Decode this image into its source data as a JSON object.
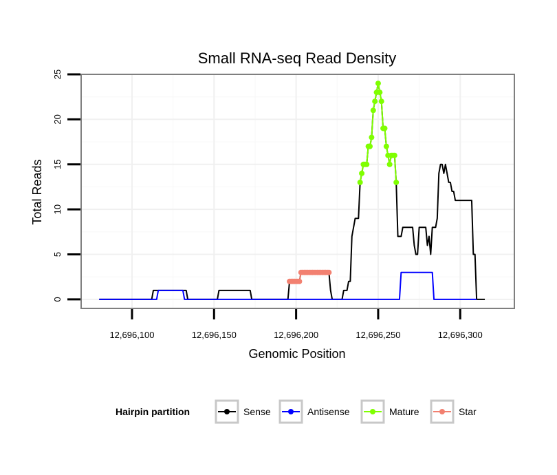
{
  "chart_data": {
    "type": "line",
    "title": "Small RNA-seq Read Density",
    "xlabel": "Genomic Position",
    "ylabel": "Total Reads",
    "xlim": [
      12696069,
      12696333
    ],
    "ylim": [
      -1,
      25
    ],
    "x_ticks": [
      12696100,
      12696150,
      12696200,
      12696250,
      12696300
    ],
    "x_tick_labels": [
      "12,696,100",
      "12,696,150",
      "12,696,200",
      "12,696,250",
      "12,696,300"
    ],
    "y_ticks": [
      0,
      5,
      10,
      15,
      20,
      25
    ],
    "y_tick_labels": [
      "0",
      "5",
      "10",
      "15",
      "20",
      "25"
    ],
    "legend": {
      "title": "Hairpin partition",
      "position": "bottom",
      "entries": [
        "Sense",
        "Antisense",
        "Mature",
        "Star"
      ]
    },
    "series": [
      {
        "name": "Sense",
        "color": "#000000",
        "style": "line",
        "points": [
          [
            12696080,
            0
          ],
          [
            12696112,
            0
          ],
          [
            12696113,
            1
          ],
          [
            12696133,
            1
          ],
          [
            12696134,
            0
          ],
          [
            12696152,
            0
          ],
          [
            12696153,
            1
          ],
          [
            12696172,
            1
          ],
          [
            12696173,
            0
          ],
          [
            12696195,
            0
          ],
          [
            12696196,
            2
          ],
          [
            12696202,
            2
          ],
          [
            12696203,
            3
          ],
          [
            12696220,
            3
          ],
          [
            12696221,
            1
          ],
          [
            12696222,
            0
          ],
          [
            12696228,
            0
          ],
          [
            12696229,
            1
          ],
          [
            12696231,
            1
          ],
          [
            12696232,
            2
          ],
          [
            12696233,
            2
          ],
          [
            12696234,
            7
          ],
          [
            12696235,
            8
          ],
          [
            12696236,
            9
          ],
          [
            12696238,
            9
          ],
          [
            12696239,
            13
          ],
          [
            12696240,
            14
          ],
          [
            12696241,
            15
          ],
          [
            12696243,
            15
          ],
          [
            12696244,
            17
          ],
          [
            12696245,
            17
          ],
          [
            12696246,
            18
          ],
          [
            12696247,
            21
          ],
          [
            12696248,
            22
          ],
          [
            12696249,
            23
          ],
          [
            12696250,
            24
          ],
          [
            12696251,
            23
          ],
          [
            12696252,
            22
          ],
          [
            12696253,
            19
          ],
          [
            12696254,
            19
          ],
          [
            12696255,
            17
          ],
          [
            12696256,
            16
          ],
          [
            12696257,
            15
          ],
          [
            12696258,
            16
          ],
          [
            12696259,
            16
          ],
          [
            12696260,
            16
          ],
          [
            12696261,
            13
          ],
          [
            12696262,
            7
          ],
          [
            12696264,
            7
          ],
          [
            12696265,
            8
          ],
          [
            12696271,
            8
          ],
          [
            12696272,
            6
          ],
          [
            12696273,
            5
          ],
          [
            12696274,
            5
          ],
          [
            12696275,
            8
          ],
          [
            12696279,
            8
          ],
          [
            12696280,
            6
          ],
          [
            12696281,
            7
          ],
          [
            12696282,
            5
          ],
          [
            12696283,
            8
          ],
          [
            12696285,
            8
          ],
          [
            12696286,
            9
          ],
          [
            12696287,
            14
          ],
          [
            12696288,
            15
          ],
          [
            12696289,
            15
          ],
          [
            12696290,
            14
          ],
          [
            12696291,
            15
          ],
          [
            12696292,
            14
          ],
          [
            12696293,
            13
          ],
          [
            12696294,
            13
          ],
          [
            12696295,
            12
          ],
          [
            12696296,
            12
          ],
          [
            12696297,
            11
          ],
          [
            12696307,
            11
          ],
          [
            12696308,
            5
          ],
          [
            12696309,
            5
          ],
          [
            12696310,
            0
          ],
          [
            12696315,
            0
          ]
        ]
      },
      {
        "name": "Antisense",
        "color": "#0000ff",
        "style": "line",
        "points": [
          [
            12696080,
            0
          ],
          [
            12696115,
            0
          ],
          [
            12696116,
            1
          ],
          [
            12696131,
            1
          ],
          [
            12696132,
            0
          ],
          [
            12696263,
            0
          ],
          [
            12696264,
            3
          ],
          [
            12696283,
            3
          ],
          [
            12696284,
            0
          ],
          [
            12696310,
            0
          ]
        ]
      },
      {
        "name": "Mature",
        "color": "#7fff00",
        "style": "line+points",
        "points": [
          [
            12696239,
            13
          ],
          [
            12696240,
            14
          ],
          [
            12696241,
            15
          ],
          [
            12696242,
            15
          ],
          [
            12696243,
            15
          ],
          [
            12696244,
            17
          ],
          [
            12696245,
            17
          ],
          [
            12696246,
            18
          ],
          [
            12696247,
            21
          ],
          [
            12696248,
            22
          ],
          [
            12696249,
            23
          ],
          [
            12696250,
            24
          ],
          [
            12696251,
            23
          ],
          [
            12696252,
            22
          ],
          [
            12696253,
            19
          ],
          [
            12696254,
            19
          ],
          [
            12696255,
            17
          ],
          [
            12696256,
            16
          ],
          [
            12696257,
            15
          ],
          [
            12696258,
            16
          ],
          [
            12696259,
            16
          ],
          [
            12696260,
            16
          ],
          [
            12696261,
            13
          ]
        ]
      },
      {
        "name": "Star",
        "color": "#f28070",
        "style": "line+points",
        "points": [
          [
            12696196,
            2
          ],
          [
            12696197,
            2
          ],
          [
            12696198,
            2
          ],
          [
            12696199,
            2
          ],
          [
            12696200,
            2
          ],
          [
            12696201,
            2
          ],
          [
            12696202,
            2
          ],
          [
            12696203,
            3
          ],
          [
            12696204,
            3
          ],
          [
            12696205,
            3
          ],
          [
            12696206,
            3
          ],
          [
            12696207,
            3
          ],
          [
            12696208,
            3
          ],
          [
            12696209,
            3
          ],
          [
            12696210,
            3
          ],
          [
            12696211,
            3
          ],
          [
            12696212,
            3
          ],
          [
            12696213,
            3
          ],
          [
            12696214,
            3
          ],
          [
            12696215,
            3
          ],
          [
            12696216,
            3
          ],
          [
            12696217,
            3
          ],
          [
            12696218,
            3
          ],
          [
            12696219,
            3
          ],
          [
            12696220,
            3
          ]
        ]
      }
    ]
  }
}
